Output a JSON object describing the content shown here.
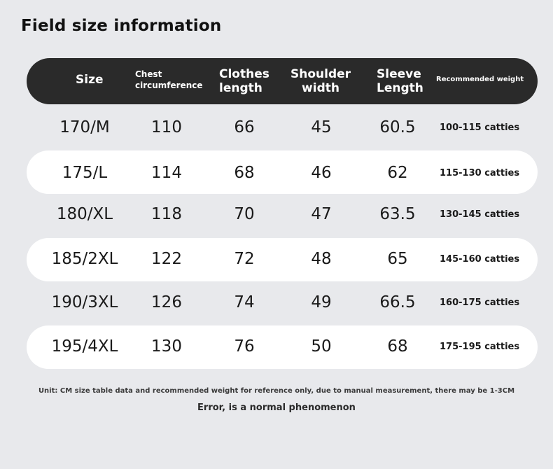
{
  "title": "Field size information",
  "headers": {
    "size": "Size",
    "chest_line1": "Chest",
    "chest_line2": "circumference",
    "clothes_line1": "Clothes",
    "clothes_line2": "length",
    "shoulder_line1": "Shoulder",
    "shoulder_line2": "width",
    "sleeve_line1": "Sleeve",
    "sleeve_line2": "Length",
    "weight": "Recommended weight"
  },
  "rows": [
    {
      "size": "170/M",
      "chest": "110",
      "length": "66",
      "shoulder": "45",
      "sleeve": "60.5",
      "weight": "100-115 catties"
    },
    {
      "size": "175/L",
      "chest": "114",
      "length": "68",
      "shoulder": "46",
      "sleeve": "62",
      "weight": "115-130 catties"
    },
    {
      "size": "180/XL",
      "chest": "118",
      "length": "70",
      "shoulder": "47",
      "sleeve": "63.5",
      "weight": "130-145 catties"
    },
    {
      "size": "185/2XL",
      "chest": "122",
      "length": "72",
      "shoulder": "48",
      "sleeve": "65",
      "weight": "145-160 catties"
    },
    {
      "size": "190/3XL",
      "chest": "126",
      "length": "74",
      "shoulder": "49",
      "sleeve": "66.5",
      "weight": "160-175 catties"
    },
    {
      "size": "195/4XL",
      "chest": "130",
      "length": "76",
      "shoulder": "50",
      "sleeve": "68",
      "weight": "175-195 catties"
    }
  ],
  "notes": {
    "line1": "Unit: CM size table data and recommended weight for reference only, due to manual measurement, there may be 1-3CM",
    "line2": "Error, is a normal phenomenon"
  },
  "colors": {
    "background": "#e8e9ec",
    "header": "#2a2a2a",
    "band": "#ffffff"
  }
}
